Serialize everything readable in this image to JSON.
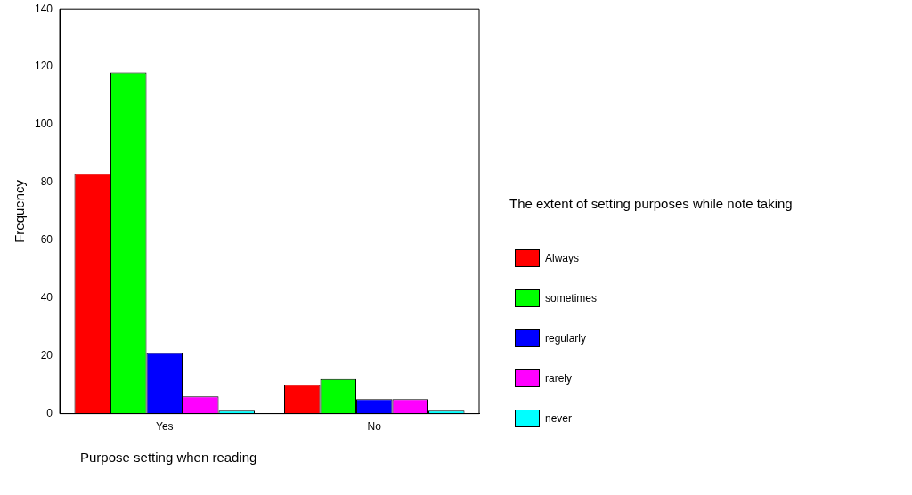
{
  "chart_data": {
    "type": "bar",
    "xlabel": "Purpose setting when reading",
    "ylabel": "Frequency",
    "legend_title": "The extent of setting purposes while note taking",
    "legend": "right",
    "grid": false,
    "categories": [
      "Yes",
      "No"
    ],
    "ylim": [
      0,
      140
    ],
    "yticks": [
      0,
      20,
      40,
      60,
      80,
      100,
      120,
      140
    ],
    "series": [
      {
        "name": "Always",
        "color": "#ff0000",
        "values": [
          83,
          10
        ]
      },
      {
        "name": "sometimes",
        "color": "#00ff00",
        "values": [
          118,
          12
        ]
      },
      {
        "name": "regularly",
        "color": "#0000ff",
        "values": [
          21,
          5
        ]
      },
      {
        "name": "rarely",
        "color": "#ff00ff",
        "values": [
          6,
          5
        ]
      },
      {
        "name": "never",
        "color": "#00ffff",
        "values": [
          1,
          1
        ]
      }
    ]
  }
}
